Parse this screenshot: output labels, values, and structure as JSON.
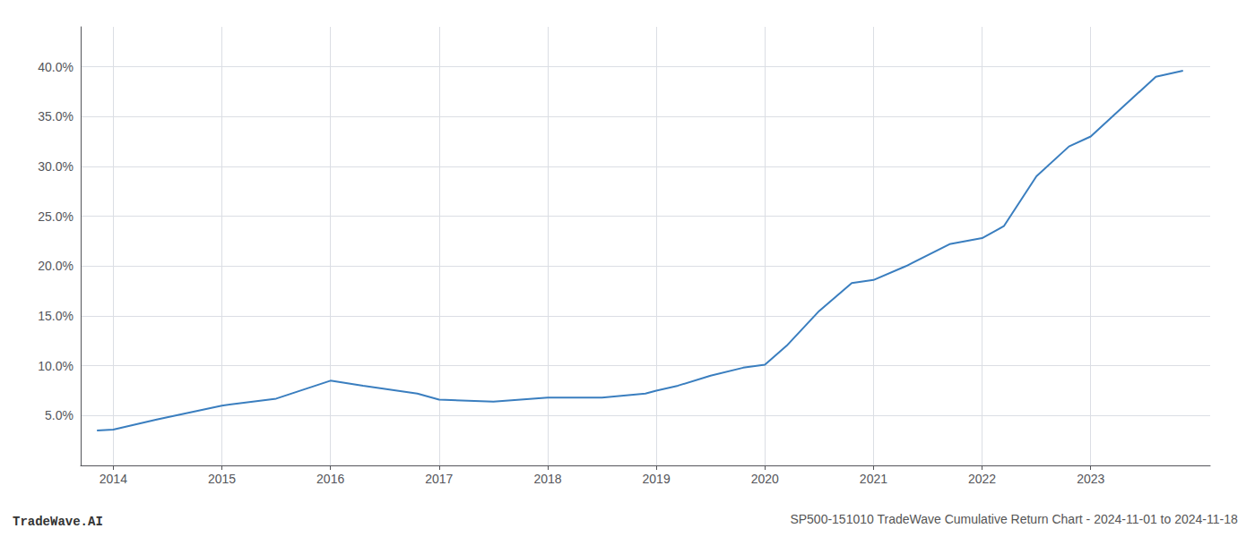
{
  "chart_data": {
    "type": "line",
    "title": "SP500-151010 TradeWave Cumulative Return Chart - 2024-11-01 to 2024-11-18",
    "annotations": [
      "TradeWave.AI"
    ],
    "x": [
      2013.85,
      2014.0,
      2014.4,
      2015.0,
      2015.5,
      2016.0,
      2016.3,
      2016.8,
      2017.0,
      2017.5,
      2018.0,
      2018.1,
      2018.5,
      2018.9,
      2019.0,
      2019.2,
      2019.5,
      2019.8,
      2020.0,
      2020.2,
      2020.5,
      2020.8,
      2021.0,
      2021.3,
      2021.7,
      2022.0,
      2022.2,
      2022.5,
      2022.8,
      2023.0,
      2023.3,
      2023.6,
      2023.85
    ],
    "values": [
      0.035,
      0.036,
      0.046,
      0.06,
      0.067,
      0.085,
      0.08,
      0.072,
      0.066,
      0.064,
      0.068,
      0.068,
      0.068,
      0.072,
      0.075,
      0.08,
      0.09,
      0.098,
      0.101,
      0.12,
      0.155,
      0.183,
      0.186,
      0.2,
      0.222,
      0.228,
      0.24,
      0.29,
      0.32,
      0.33,
      0.36,
      0.39,
      0.396
    ],
    "color": "#3a7ebf",
    "xlim": [
      2013.7,
      2024.1
    ],
    "ylim": [
      0.0,
      0.44
    ],
    "xticks": [
      2014,
      2015,
      2016,
      2017,
      2018,
      2019,
      2020,
      2021,
      2022,
      2023
    ],
    "yticks": [
      {
        "value": 0.05,
        "label": "5.0%"
      },
      {
        "value": 0.1,
        "label": "10.0%"
      },
      {
        "value": 0.15,
        "label": "15.0%"
      },
      {
        "value": 0.2,
        "label": "20.0%"
      },
      {
        "value": 0.25,
        "label": "25.0%"
      },
      {
        "value": 0.3,
        "label": "30.0%"
      },
      {
        "value": 0.35,
        "label": "35.0%"
      },
      {
        "value": 0.4,
        "label": "40.0%"
      }
    ],
    "grid": true
  }
}
